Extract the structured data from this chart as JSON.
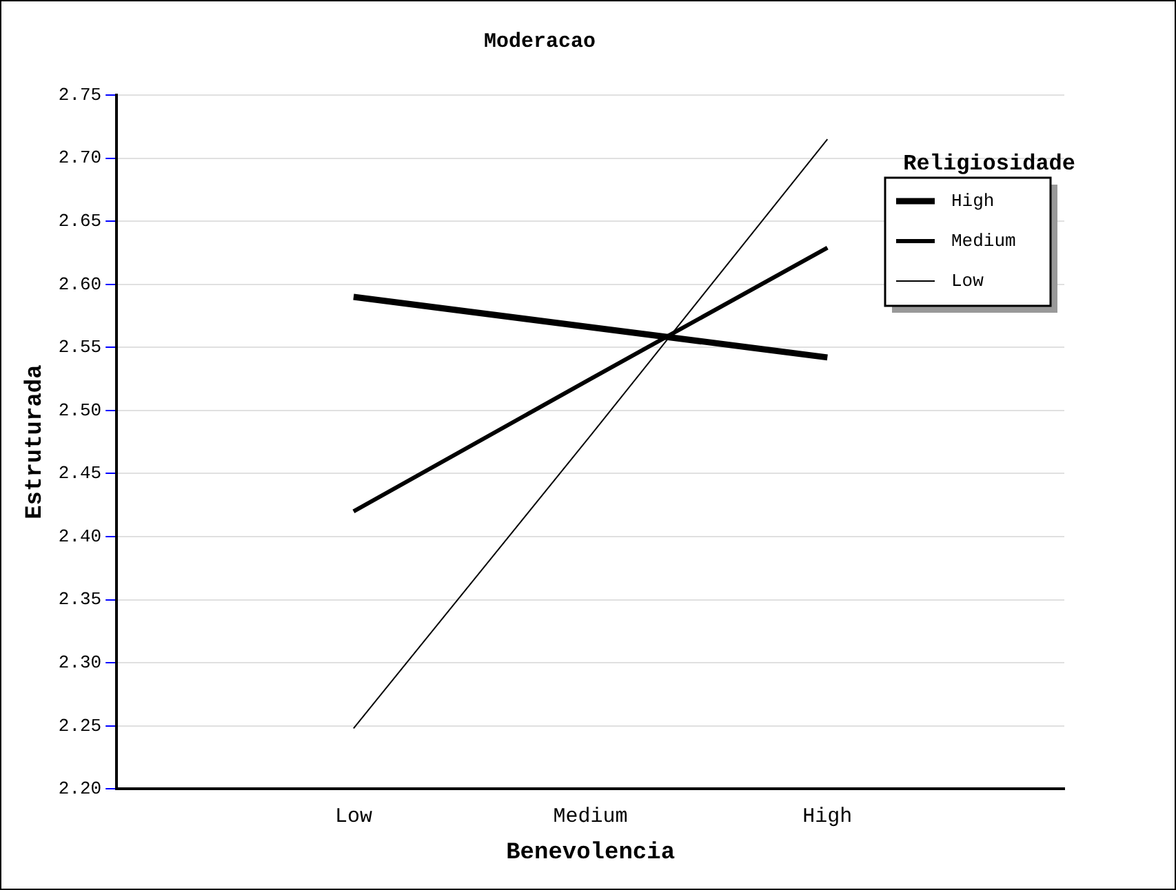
{
  "chart_data": {
    "type": "line",
    "title": "Moderacao",
    "xlabel": "Benevolencia",
    "ylabel": "Estruturada",
    "legend_title": "Religiosidade",
    "categories": [
      "Low",
      "Medium",
      "High"
    ],
    "series": [
      {
        "name": "High",
        "color": "#000000",
        "values": [
          2.59,
          2.566,
          2.542
        ]
      },
      {
        "name": "Medium",
        "color": "#000000",
        "values": [
          2.42,
          2.525,
          2.629
        ]
      },
      {
        "name": "Low",
        "color": "#000000",
        "values": [
          2.248,
          2.48,
          2.715
        ]
      }
    ],
    "ylim": [
      2.2,
      2.75
    ],
    "yticks": [
      {
        "value": 2.2,
        "label": "2.20"
      },
      2.25,
      {
        "value": 2.3,
        "label": "2.30"
      },
      2.35,
      {
        "value": 2.4,
        "label": "2.40"
      },
      2.45,
      {
        "value": 2.5,
        "label": "2.50"
      },
      2.55,
      {
        "value": 2.6,
        "label": "2.60"
      },
      2.65,
      {
        "value": 2.7,
        "label": "2.70"
      },
      2.75
    ],
    "grid": "y",
    "legend": "top right",
    "marker": "none",
    "line_style": "solid"
  }
}
